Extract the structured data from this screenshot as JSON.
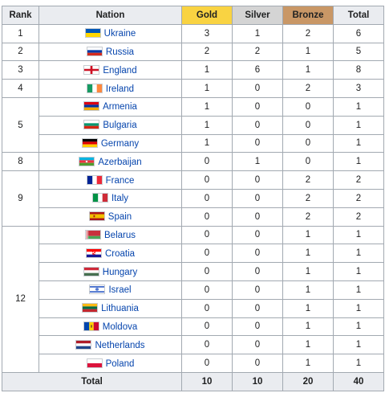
{
  "headers": {
    "rank": "Rank",
    "nation": "Nation",
    "gold": "Gold",
    "silver": "Silver",
    "bronze": "Bronze",
    "total": "Total"
  },
  "colors": {
    "gold": "#f9d342",
    "silver": "#d4d4d4",
    "bronze": "#c99766",
    "header_bg": "#eaecf0",
    "link": "#0645ad"
  },
  "rows": [
    {
      "rank": "1",
      "nation": "Ukraine",
      "flag": "ukraine-flag-icon",
      "gold": "3",
      "silver": "1",
      "bronze": "2",
      "total": "6"
    },
    {
      "rank": "2",
      "nation": "Russia",
      "flag": "russia-flag-icon",
      "gold": "2",
      "silver": "2",
      "bronze": "1",
      "total": "5"
    },
    {
      "rank": "3",
      "nation": "England",
      "flag": "england-flag-icon",
      "gold": "1",
      "silver": "6",
      "bronze": "1",
      "total": "8"
    },
    {
      "rank": "4",
      "nation": "Ireland",
      "flag": "ireland-flag-icon",
      "gold": "1",
      "silver": "0",
      "bronze": "2",
      "total": "3"
    },
    {
      "rank": "5",
      "nation": "Armenia",
      "flag": "armenia-flag-icon",
      "gold": "1",
      "silver": "0",
      "bronze": "0",
      "total": "1"
    },
    {
      "rank": "5",
      "nation": "Bulgaria",
      "flag": "bulgaria-flag-icon",
      "gold": "1",
      "silver": "0",
      "bronze": "0",
      "total": "1"
    },
    {
      "rank": "5",
      "nation": "Germany",
      "flag": "germany-flag-icon",
      "gold": "1",
      "silver": "0",
      "bronze": "0",
      "total": "1"
    },
    {
      "rank": "8",
      "nation": "Azerbaijan",
      "flag": "azerbaijan-flag-icon",
      "gold": "0",
      "silver": "1",
      "bronze": "0",
      "total": "1"
    },
    {
      "rank": "9",
      "nation": "France",
      "flag": "france-flag-icon",
      "gold": "0",
      "silver": "0",
      "bronze": "2",
      "total": "2"
    },
    {
      "rank": "9",
      "nation": "Italy",
      "flag": "italy-flag-icon",
      "gold": "0",
      "silver": "0",
      "bronze": "2",
      "total": "2"
    },
    {
      "rank": "9",
      "nation": "Spain",
      "flag": "spain-flag-icon",
      "gold": "0",
      "silver": "0",
      "bronze": "2",
      "total": "2"
    },
    {
      "rank": "12",
      "nation": "Belarus",
      "flag": "belarus-flag-icon",
      "gold": "0",
      "silver": "0",
      "bronze": "1",
      "total": "1"
    },
    {
      "rank": "12",
      "nation": "Croatia",
      "flag": "croatia-flag-icon",
      "gold": "0",
      "silver": "0",
      "bronze": "1",
      "total": "1"
    },
    {
      "rank": "12",
      "nation": "Hungary",
      "flag": "hungary-flag-icon",
      "gold": "0",
      "silver": "0",
      "bronze": "1",
      "total": "1"
    },
    {
      "rank": "12",
      "nation": "Israel",
      "flag": "israel-flag-icon",
      "gold": "0",
      "silver": "0",
      "bronze": "1",
      "total": "1"
    },
    {
      "rank": "12",
      "nation": "Lithuania",
      "flag": "lithuania-flag-icon",
      "gold": "0",
      "silver": "0",
      "bronze": "1",
      "total": "1"
    },
    {
      "rank": "12",
      "nation": "Moldova",
      "flag": "moldova-flag-icon",
      "gold": "0",
      "silver": "0",
      "bronze": "1",
      "total": "1"
    },
    {
      "rank": "12",
      "nation": "Netherlands",
      "flag": "netherlands-flag-icon",
      "gold": "0",
      "silver": "0",
      "bronze": "1",
      "total": "1"
    },
    {
      "rank": "12",
      "nation": "Poland",
      "flag": "poland-flag-icon",
      "gold": "0",
      "silver": "0",
      "bronze": "1",
      "total": "1"
    }
  ],
  "totals": {
    "label": "Total",
    "gold": "10",
    "silver": "10",
    "bronze": "20",
    "total": "40"
  }
}
